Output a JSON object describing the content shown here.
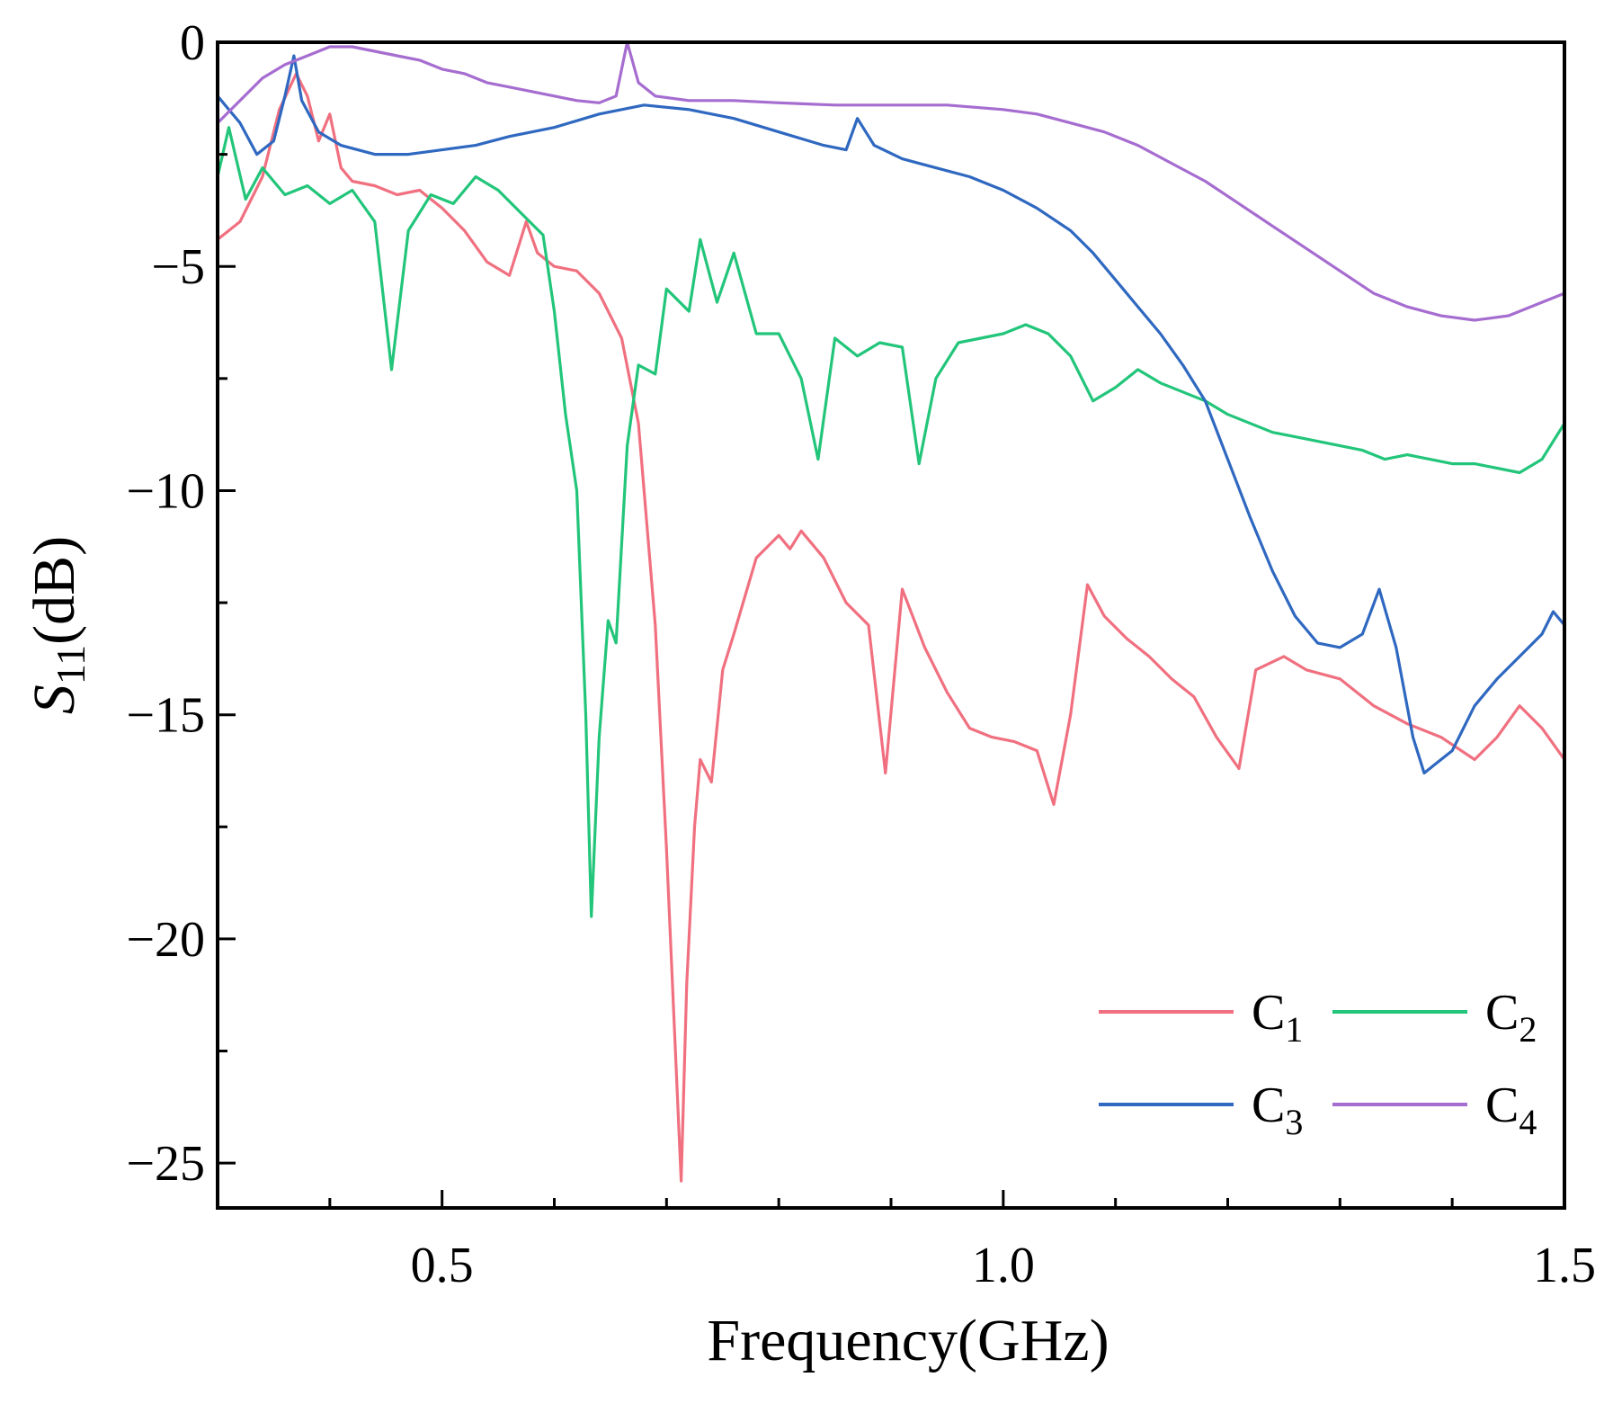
{
  "chart_data": {
    "type": "line",
    "title": "",
    "xlabel": "Frequency(GHz)",
    "ylabel": {
      "main": "S",
      "sub": "11",
      "suffix": "(dB)"
    },
    "xlim": [
      0.3,
      1.5
    ],
    "ylim": [
      -26,
      0
    ],
    "xticks": [
      0.5,
      1.0,
      1.5
    ],
    "xtick_labels": [
      "0.5",
      "1.0",
      "1.5"
    ],
    "yticks": [
      0,
      -5,
      -10,
      -15,
      -20,
      -25
    ],
    "ytick_labels": [
      "0",
      "−5",
      "−10",
      "−15",
      "−20",
      "−25"
    ],
    "grid": false,
    "legend_position": "bottom-right",
    "series": [
      {
        "name": "C",
        "sub": "1",
        "color": "#f07080",
        "points": [
          [
            0.3,
            -4.4
          ],
          [
            0.32,
            -4.0
          ],
          [
            0.34,
            -3.0
          ],
          [
            0.355,
            -1.5
          ],
          [
            0.37,
            -0.7
          ],
          [
            0.38,
            -1.2
          ],
          [
            0.39,
            -2.2
          ],
          [
            0.4,
            -1.6
          ],
          [
            0.41,
            -2.8
          ],
          [
            0.42,
            -3.1
          ],
          [
            0.44,
            -3.2
          ],
          [
            0.46,
            -3.4
          ],
          [
            0.48,
            -3.3
          ],
          [
            0.5,
            -3.7
          ],
          [
            0.52,
            -4.2
          ],
          [
            0.54,
            -4.9
          ],
          [
            0.56,
            -5.2
          ],
          [
            0.575,
            -4.0
          ],
          [
            0.585,
            -4.7
          ],
          [
            0.6,
            -5.0
          ],
          [
            0.62,
            -5.1
          ],
          [
            0.64,
            -5.6
          ],
          [
            0.66,
            -6.6
          ],
          [
            0.675,
            -8.5
          ],
          [
            0.69,
            -13
          ],
          [
            0.7,
            -18
          ],
          [
            0.707,
            -22
          ],
          [
            0.713,
            -25.4
          ],
          [
            0.718,
            -21
          ],
          [
            0.725,
            -17.5
          ],
          [
            0.73,
            -16
          ],
          [
            0.74,
            -16.5
          ],
          [
            0.75,
            -14
          ],
          [
            0.76,
            -13.2
          ],
          [
            0.78,
            -11.5
          ],
          [
            0.8,
            -11.0
          ],
          [
            0.81,
            -11.3
          ],
          [
            0.82,
            -10.9
          ],
          [
            0.84,
            -11.5
          ],
          [
            0.86,
            -12.5
          ],
          [
            0.88,
            -13.0
          ],
          [
            0.895,
            -16.3
          ],
          [
            0.91,
            -12.2
          ],
          [
            0.93,
            -13.5
          ],
          [
            0.95,
            -14.5
          ],
          [
            0.97,
            -15.3
          ],
          [
            0.99,
            -15.5
          ],
          [
            1.01,
            -15.6
          ],
          [
            1.03,
            -15.8
          ],
          [
            1.045,
            -17.0
          ],
          [
            1.06,
            -15.0
          ],
          [
            1.075,
            -12.1
          ],
          [
            1.09,
            -12.8
          ],
          [
            1.11,
            -13.3
          ],
          [
            1.13,
            -13.7
          ],
          [
            1.15,
            -14.2
          ],
          [
            1.17,
            -14.6
          ],
          [
            1.19,
            -15.5
          ],
          [
            1.21,
            -16.2
          ],
          [
            1.225,
            -14.0
          ],
          [
            1.25,
            -13.7
          ],
          [
            1.27,
            -14.0
          ],
          [
            1.3,
            -14.2
          ],
          [
            1.33,
            -14.8
          ],
          [
            1.36,
            -15.2
          ],
          [
            1.39,
            -15.5
          ],
          [
            1.42,
            -16.0
          ],
          [
            1.44,
            -15.5
          ],
          [
            1.46,
            -14.8
          ],
          [
            1.48,
            -15.3
          ],
          [
            1.5,
            -16.0
          ]
        ]
      },
      {
        "name": "C",
        "sub": "2",
        "color": "#22c57a",
        "points": [
          [
            0.3,
            -3.0
          ],
          [
            0.31,
            -1.9
          ],
          [
            0.325,
            -3.5
          ],
          [
            0.34,
            -2.8
          ],
          [
            0.36,
            -3.4
          ],
          [
            0.38,
            -3.2
          ],
          [
            0.4,
            -3.6
          ],
          [
            0.42,
            -3.3
          ],
          [
            0.44,
            -4.0
          ],
          [
            0.455,
            -7.3
          ],
          [
            0.47,
            -4.2
          ],
          [
            0.49,
            -3.4
          ],
          [
            0.51,
            -3.6
          ],
          [
            0.53,
            -3.0
          ],
          [
            0.55,
            -3.3
          ],
          [
            0.57,
            -3.8
          ],
          [
            0.59,
            -4.3
          ],
          [
            0.6,
            -6.0
          ],
          [
            0.61,
            -8.3
          ],
          [
            0.62,
            -10.0
          ],
          [
            0.628,
            -15.0
          ],
          [
            0.633,
            -19.5
          ],
          [
            0.64,
            -15.5
          ],
          [
            0.648,
            -12.9
          ],
          [
            0.655,
            -13.4
          ],
          [
            0.665,
            -9.0
          ],
          [
            0.675,
            -7.2
          ],
          [
            0.69,
            -7.4
          ],
          [
            0.7,
            -5.5
          ],
          [
            0.72,
            -6.0
          ],
          [
            0.73,
            -4.4
          ],
          [
            0.745,
            -5.8
          ],
          [
            0.76,
            -4.7
          ],
          [
            0.78,
            -6.5
          ],
          [
            0.8,
            -6.5
          ],
          [
            0.82,
            -7.5
          ],
          [
            0.835,
            -9.3
          ],
          [
            0.85,
            -6.6
          ],
          [
            0.87,
            -7.0
          ],
          [
            0.89,
            -6.7
          ],
          [
            0.91,
            -6.8
          ],
          [
            0.925,
            -9.4
          ],
          [
            0.94,
            -7.5
          ],
          [
            0.96,
            -6.7
          ],
          [
            0.98,
            -6.6
          ],
          [
            1.0,
            -6.5
          ],
          [
            1.02,
            -6.3
          ],
          [
            1.04,
            -6.5
          ],
          [
            1.06,
            -7.0
          ],
          [
            1.08,
            -8.0
          ],
          [
            1.1,
            -7.7
          ],
          [
            1.12,
            -7.3
          ],
          [
            1.14,
            -7.6
          ],
          [
            1.16,
            -7.8
          ],
          [
            1.18,
            -8.0
          ],
          [
            1.2,
            -8.3
          ],
          [
            1.22,
            -8.5
          ],
          [
            1.24,
            -8.7
          ],
          [
            1.26,
            -8.8
          ],
          [
            1.28,
            -8.9
          ],
          [
            1.3,
            -9.0
          ],
          [
            1.32,
            -9.1
          ],
          [
            1.34,
            -9.3
          ],
          [
            1.36,
            -9.2
          ],
          [
            1.38,
            -9.3
          ],
          [
            1.4,
            -9.4
          ],
          [
            1.42,
            -9.4
          ],
          [
            1.44,
            -9.5
          ],
          [
            1.46,
            -9.6
          ],
          [
            1.48,
            -9.3
          ],
          [
            1.5,
            -8.5
          ]
        ]
      },
      {
        "name": "C",
        "sub": "3",
        "color": "#2f68c0",
        "points": [
          [
            0.3,
            -1.2
          ],
          [
            0.31,
            -1.5
          ],
          [
            0.32,
            -1.8
          ],
          [
            0.335,
            -2.5
          ],
          [
            0.35,
            -2.2
          ],
          [
            0.36,
            -1.2
          ],
          [
            0.368,
            -0.3
          ],
          [
            0.375,
            -1.3
          ],
          [
            0.39,
            -2.0
          ],
          [
            0.41,
            -2.3
          ],
          [
            0.44,
            -2.5
          ],
          [
            0.47,
            -2.5
          ],
          [
            0.5,
            -2.4
          ],
          [
            0.53,
            -2.3
          ],
          [
            0.56,
            -2.1
          ],
          [
            0.6,
            -1.9
          ],
          [
            0.64,
            -1.6
          ],
          [
            0.68,
            -1.4
          ],
          [
            0.72,
            -1.5
          ],
          [
            0.76,
            -1.7
          ],
          [
            0.8,
            -2.0
          ],
          [
            0.84,
            -2.3
          ],
          [
            0.86,
            -2.4
          ],
          [
            0.87,
            -1.7
          ],
          [
            0.885,
            -2.3
          ],
          [
            0.91,
            -2.6
          ],
          [
            0.94,
            -2.8
          ],
          [
            0.97,
            -3.0
          ],
          [
            1.0,
            -3.3
          ],
          [
            1.03,
            -3.7
          ],
          [
            1.06,
            -4.2
          ],
          [
            1.08,
            -4.7
          ],
          [
            1.1,
            -5.3
          ],
          [
            1.12,
            -5.9
          ],
          [
            1.14,
            -6.5
          ],
          [
            1.16,
            -7.2
          ],
          [
            1.18,
            -8.0
          ],
          [
            1.2,
            -9.3
          ],
          [
            1.22,
            -10.6
          ],
          [
            1.24,
            -11.8
          ],
          [
            1.26,
            -12.8
          ],
          [
            1.28,
            -13.4
          ],
          [
            1.3,
            -13.5
          ],
          [
            1.32,
            -13.2
          ],
          [
            1.335,
            -12.2
          ],
          [
            1.35,
            -13.5
          ],
          [
            1.365,
            -15.5
          ],
          [
            1.375,
            -16.3
          ],
          [
            1.385,
            -16.1
          ],
          [
            1.4,
            -15.8
          ],
          [
            1.42,
            -14.8
          ],
          [
            1.44,
            -14.2
          ],
          [
            1.46,
            -13.7
          ],
          [
            1.48,
            -13.2
          ],
          [
            1.49,
            -12.7
          ],
          [
            1.5,
            -13.0
          ]
        ]
      },
      {
        "name": "C",
        "sub": "4",
        "color": "#a66dd0",
        "points": [
          [
            0.3,
            -1.8
          ],
          [
            0.32,
            -1.3
          ],
          [
            0.34,
            -0.8
          ],
          [
            0.36,
            -0.5
          ],
          [
            0.38,
            -0.3
          ],
          [
            0.4,
            -0.1
          ],
          [
            0.42,
            -0.1
          ],
          [
            0.44,
            -0.2
          ],
          [
            0.46,
            -0.3
          ],
          [
            0.48,
            -0.4
          ],
          [
            0.5,
            -0.6
          ],
          [
            0.52,
            -0.7
          ],
          [
            0.54,
            -0.9
          ],
          [
            0.56,
            -1.0
          ],
          [
            0.58,
            -1.1
          ],
          [
            0.6,
            -1.2
          ],
          [
            0.62,
            -1.3
          ],
          [
            0.64,
            -1.35
          ],
          [
            0.655,
            -1.2
          ],
          [
            0.665,
            0.0
          ],
          [
            0.675,
            -0.9
          ],
          [
            0.69,
            -1.2
          ],
          [
            0.72,
            -1.3
          ],
          [
            0.76,
            -1.3
          ],
          [
            0.8,
            -1.35
          ],
          [
            0.85,
            -1.4
          ],
          [
            0.9,
            -1.4
          ],
          [
            0.95,
            -1.4
          ],
          [
            1.0,
            -1.5
          ],
          [
            1.03,
            -1.6
          ],
          [
            1.06,
            -1.8
          ],
          [
            1.09,
            -2.0
          ],
          [
            1.12,
            -2.3
          ],
          [
            1.15,
            -2.7
          ],
          [
            1.18,
            -3.1
          ],
          [
            1.21,
            -3.6
          ],
          [
            1.24,
            -4.1
          ],
          [
            1.27,
            -4.6
          ],
          [
            1.3,
            -5.1
          ],
          [
            1.33,
            -5.6
          ],
          [
            1.36,
            -5.9
          ],
          [
            1.39,
            -6.1
          ],
          [
            1.42,
            -6.2
          ],
          [
            1.45,
            -6.1
          ],
          [
            1.48,
            -5.8
          ],
          [
            1.5,
            -5.6
          ]
        ]
      }
    ]
  }
}
